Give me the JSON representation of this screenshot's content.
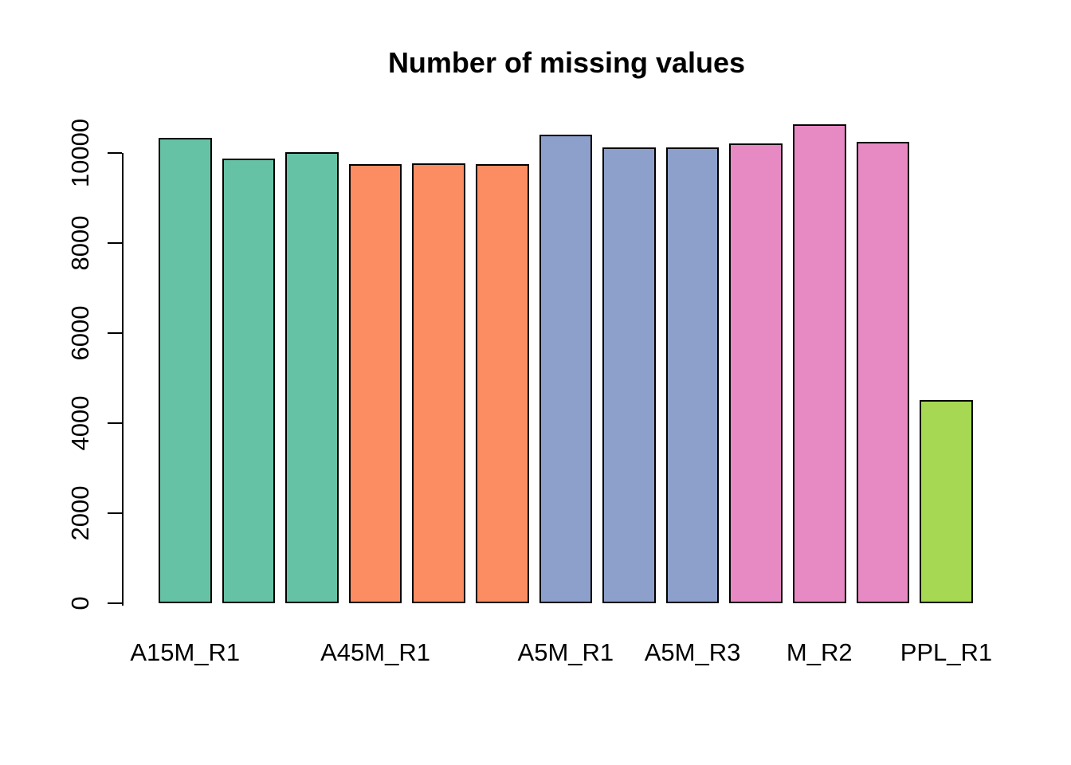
{
  "chart_data": {
    "type": "bar",
    "title": "Number of missing values",
    "xlabel": "",
    "ylabel": "",
    "grid": false,
    "legend": "none",
    "background_color": "#FFFFFF",
    "bar_border_color": "#000000",
    "axis_color": "#000000",
    "ylim": [
      0,
      10700
    ],
    "y_ticks": [
      0,
      2000,
      4000,
      6000,
      8000,
      10000
    ],
    "y_tick_labels": [
      "0",
      "2000",
      "4000",
      "6000",
      "8000",
      "10000"
    ],
    "bars": [
      {
        "value": 10340,
        "color": "#66C2A5"
      },
      {
        "value": 9870,
        "color": "#66C2A5"
      },
      {
        "value": 10025,
        "color": "#66C2A5"
      },
      {
        "value": 9755,
        "color": "#FC8D62"
      },
      {
        "value": 9775,
        "color": "#FC8D62"
      },
      {
        "value": 9750,
        "color": "#FC8D62"
      },
      {
        "value": 10400,
        "color": "#8DA0CB"
      },
      {
        "value": 10120,
        "color": "#8DA0CB"
      },
      {
        "value": 10120,
        "color": "#8DA0CB"
      },
      {
        "value": 10215,
        "color": "#E78AC3"
      },
      {
        "value": 10630,
        "color": "#E78AC3"
      },
      {
        "value": 10240,
        "color": "#E78AC3"
      },
      {
        "value": 4510,
        "color": "#A6D854"
      }
    ],
    "x_tick_labels": [
      {
        "bar_index": 0,
        "label": "A15M_R1"
      },
      {
        "bar_index": 3,
        "label": "A45M_R1"
      },
      {
        "bar_index": 6,
        "label": "A5M_R1"
      },
      {
        "bar_index": 8,
        "label": "A5M_R3"
      },
      {
        "bar_index": 10,
        "label": "M_R2"
      },
      {
        "bar_index": 12,
        "label": "PPL_R1"
      }
    ]
  }
}
